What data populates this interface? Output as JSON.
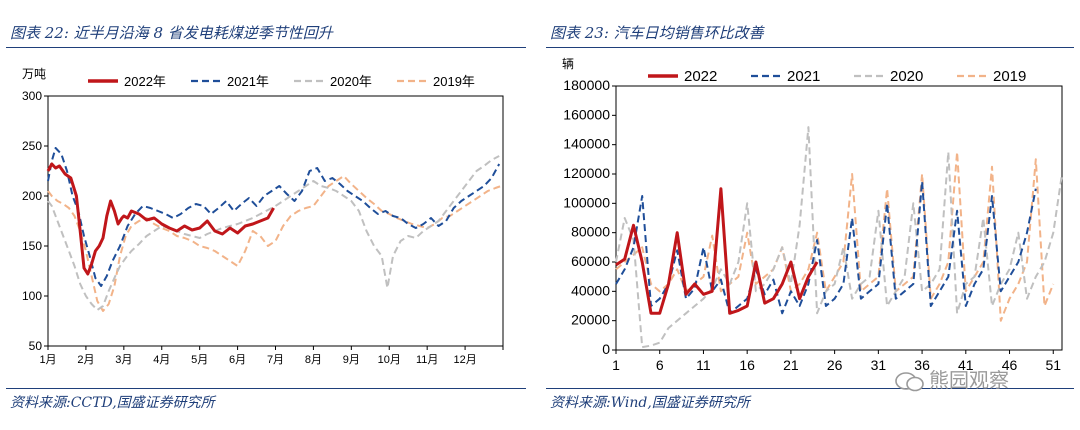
{
  "left": {
    "figure_title": "图表 22:  近半月沿海 8 省发电耗煤逆季节性回升",
    "source": "资料来源:CCTD,国盛证券研究所",
    "unit_label": "万吨"
  },
  "right": {
    "figure_title": "图表 23:  汽车日均销售环比改善",
    "source": "资料来源:Wind,国盛证券研究所",
    "unit_label": "辆"
  },
  "watermark": "熊园观察",
  "colors": {
    "y2022": "#c0161a",
    "y2021": "#1f4e99",
    "y2020": "#c0c0c0",
    "y2019": "#f2b389",
    "frame": "#1f3f7a"
  },
  "chart_data": [
    {
      "type": "line",
      "ylim": [
        50,
        300
      ],
      "yticks": [
        50,
        100,
        150,
        200,
        250,
        300
      ],
      "xlim": [
        1,
        13
      ],
      "xtick_labels": [
        "1月",
        "2月",
        "3月",
        "4月",
        "5月",
        "6月",
        "7月",
        "8月",
        "9月",
        "10月",
        "11月",
        "12月"
      ],
      "grid": false,
      "legend_position": "top",
      "series": [
        {
          "name": "2022年",
          "style": "solid",
          "x": [
            1,
            1.1,
            1.2,
            1.3,
            1.45,
            1.6,
            1.75,
            1.85,
            1.95,
            2.05,
            2.15,
            2.25,
            2.35,
            2.45,
            2.55,
            2.65,
            2.75,
            2.85,
            2.95,
            3.0,
            3.1,
            3.2,
            3.4,
            3.6,
            3.8,
            4.0,
            4.2,
            4.4,
            4.6,
            4.8,
            5.0,
            5.2,
            5.4,
            5.6,
            5.8,
            6.0,
            6.2,
            6.4,
            6.6,
            6.8,
            6.95
          ],
          "y": [
            225,
            232,
            228,
            230,
            222,
            218,
            200,
            165,
            128,
            122,
            132,
            145,
            150,
            158,
            180,
            195,
            185,
            172,
            178,
            180,
            178,
            185,
            182,
            176,
            178,
            172,
            168,
            165,
            170,
            166,
            168,
            175,
            165,
            162,
            168,
            163,
            170,
            172,
            175,
            178,
            188
          ]
        },
        {
          "name": "2021年",
          "style": "dashed",
          "x": [
            1,
            1.1,
            1.2,
            1.35,
            1.5,
            1.65,
            1.8,
            1.95,
            2.1,
            2.25,
            2.4,
            2.55,
            2.7,
            2.9,
            3.1,
            3.3,
            3.5,
            3.7,
            3.9,
            4.1,
            4.3,
            4.5,
            4.7,
            4.9,
            5.1,
            5.3,
            5.5,
            5.7,
            5.9,
            6.1,
            6.3,
            6.5,
            6.7,
            6.9,
            7.1,
            7.3,
            7.5,
            7.7,
            7.9,
            8.1,
            8.3,
            8.5,
            8.7,
            8.9,
            9.1,
            9.3,
            9.5,
            9.7,
            9.9,
            10.1,
            10.3,
            10.5,
            10.7,
            10.9,
            11.1,
            11.3,
            11.5,
            11.7,
            11.9,
            12.1,
            12.3,
            12.5,
            12.7,
            12.9
          ],
          "y": [
            215,
            235,
            248,
            242,
            225,
            200,
            185,
            160,
            140,
            118,
            110,
            120,
            135,
            150,
            170,
            182,
            190,
            188,
            185,
            182,
            178,
            182,
            188,
            192,
            190,
            182,
            188,
            195,
            185,
            192,
            198,
            190,
            200,
            205,
            210,
            202,
            195,
            205,
            225,
            228,
            215,
            218,
            212,
            205,
            200,
            195,
            188,
            182,
            185,
            180,
            178,
            172,
            168,
            172,
            178,
            170,
            175,
            188,
            195,
            200,
            205,
            210,
            218,
            232
          ]
        },
        {
          "name": "2020年",
          "style": "dashed",
          "x": [
            1,
            1.1,
            1.25,
            1.4,
            1.55,
            1.7,
            1.85,
            2.0,
            2.15,
            2.3,
            2.45,
            2.6,
            2.75,
            2.9,
            3.05,
            3.2,
            3.4,
            3.6,
            3.8,
            4.0,
            4.2,
            4.4,
            4.6,
            4.8,
            5.0,
            5.2,
            5.4,
            5.6,
            5.8,
            6.0,
            6.2,
            6.4,
            6.6,
            6.8,
            7.0,
            7.2,
            7.4,
            7.6,
            7.8,
            8.0,
            8.2,
            8.4,
            8.6,
            8.8,
            9.0,
            9.2,
            9.4,
            9.6,
            9.8,
            9.95,
            10.1,
            10.3,
            10.5,
            10.7,
            10.9,
            11.1,
            11.3,
            11.5,
            11.7,
            11.9,
            12.1,
            12.3,
            12.5,
            12.7,
            12.9
          ],
          "y": [
            195,
            190,
            175,
            160,
            145,
            130,
            112,
            100,
            92,
            86,
            90,
            105,
            118,
            130,
            138,
            145,
            152,
            160,
            165,
            170,
            168,
            165,
            162,
            160,
            158,
            162,
            165,
            168,
            170,
            172,
            175,
            178,
            182,
            186,
            190,
            195,
            200,
            205,
            210,
            215,
            210,
            208,
            205,
            200,
            195,
            185,
            165,
            150,
            140,
            108,
            140,
            155,
            160,
            158,
            165,
            170,
            175,
            185,
            195,
            205,
            215,
            225,
            230,
            236,
            240
          ]
        },
        {
          "name": "2019年",
          "style": "dashed",
          "x": [
            1,
            1.1,
            1.25,
            1.4,
            1.55,
            1.7,
            1.85,
            2.0,
            2.15,
            2.3,
            2.45,
            2.6,
            2.75,
            2.9,
            3.05,
            3.2,
            3.4,
            3.6,
            3.8,
            4.0,
            4.2,
            4.4,
            4.6,
            4.8,
            5.0,
            5.2,
            5.4,
            5.6,
            5.8,
            6.0,
            6.2,
            6.4,
            6.6,
            6.8,
            7.0,
            7.2,
            7.4,
            7.6,
            7.8,
            8.0,
            8.2,
            8.4,
            8.6,
            8.8,
            9.0,
            9.2,
            9.4,
            9.6,
            9.8,
            10.0,
            10.2,
            10.4,
            10.6,
            10.8,
            11.0,
            11.2,
            11.4,
            11.6,
            11.8,
            12.0,
            12.2,
            12.4,
            12.6,
            12.8,
            12.95
          ],
          "y": [
            205,
            200,
            195,
            192,
            188,
            180,
            165,
            145,
            120,
            95,
            85,
            92,
            110,
            140,
            160,
            170,
            175,
            178,
            172,
            168,
            165,
            160,
            158,
            155,
            150,
            148,
            145,
            140,
            135,
            130,
            145,
            165,
            160,
            150,
            155,
            170,
            180,
            185,
            188,
            190,
            200,
            210,
            215,
            220,
            212,
            205,
            198,
            192,
            185,
            182,
            178,
            175,
            172,
            170,
            168,
            172,
            178,
            180,
            185,
            190,
            195,
            200,
            205,
            208,
            210
          ]
        }
      ]
    },
    {
      "type": "line",
      "ylim": [
        0,
        180000
      ],
      "yticks": [
        0,
        20000,
        40000,
        60000,
        80000,
        100000,
        120000,
        140000,
        160000,
        180000
      ],
      "xlim": [
        1,
        52
      ],
      "xticks": [
        1,
        6,
        11,
        16,
        21,
        26,
        31,
        36,
        41,
        46,
        51
      ],
      "grid": false,
      "legend_position": "top",
      "series": [
        {
          "name": "2022",
          "style": "solid",
          "x": [
            1,
            2,
            3,
            4,
            5,
            6,
            7,
            8,
            9,
            10,
            11,
            12,
            13,
            14,
            15,
            16,
            17,
            18,
            19,
            20,
            21,
            22,
            23,
            24
          ],
          "y": [
            58000,
            62000,
            85000,
            60000,
            25000,
            25000,
            45000,
            80000,
            38000,
            45000,
            38000,
            40000,
            110000,
            25000,
            27000,
            30000,
            60000,
            32000,
            35000,
            45000,
            60000,
            35000,
            50000,
            60000
          ]
        },
        {
          "name": "2021",
          "style": "dashed",
          "x": [
            1,
            2,
            3,
            4,
            5,
            6,
            7,
            8,
            9,
            10,
            11,
            12,
            13,
            14,
            15,
            16,
            17,
            18,
            19,
            20,
            21,
            22,
            23,
            24,
            25,
            26,
            27,
            28,
            29,
            30,
            31,
            32,
            33,
            34,
            35,
            36,
            37,
            38,
            39,
            40,
            41,
            42,
            43,
            44,
            45,
            46,
            47,
            48,
            49
          ],
          "y": [
            45000,
            55000,
            70000,
            105000,
            30000,
            35000,
            45000,
            68000,
            35000,
            42000,
            70000,
            40000,
            48000,
            25000,
            30000,
            35000,
            55000,
            38000,
            48000,
            25000,
            40000,
            30000,
            45000,
            75000,
            30000,
            35000,
            45000,
            90000,
            35000,
            40000,
            45000,
            100000,
            35000,
            40000,
            45000,
            115000,
            30000,
            40000,
            50000,
            95000,
            30000,
            45000,
            55000,
            105000,
            40000,
            50000,
            60000,
            80000,
            110000
          ]
        },
        {
          "name": "2020",
          "style": "dashed",
          "x": [
            1,
            2,
            3,
            4,
            5,
            6,
            7,
            8,
            9,
            10,
            11,
            12,
            13,
            14,
            15,
            16,
            17,
            18,
            19,
            20,
            21,
            22,
            23,
            24,
            25,
            26,
            27,
            28,
            29,
            30,
            31,
            32,
            33,
            34,
            35,
            36,
            37,
            38,
            39,
            40,
            41,
            42,
            43,
            44,
            45,
            46,
            47,
            48,
            49,
            50,
            51,
            52
          ],
          "y": [
            60000,
            90000,
            75000,
            2000,
            3000,
            5000,
            15000,
            20000,
            25000,
            30000,
            35000,
            42000,
            55000,
            45000,
            60000,
            100000,
            40000,
            45000,
            55000,
            70000,
            45000,
            85000,
            152000,
            25000,
            40000,
            45000,
            70000,
            35000,
            45000,
            50000,
            95000,
            30000,
            40000,
            50000,
            100000,
            40000,
            45000,
            55000,
            135000,
            25000,
            45000,
            50000,
            90000,
            30000,
            45000,
            55000,
            80000,
            35000,
            50000,
            60000,
            80000,
            120000
          ]
        },
        {
          "name": "2019",
          "style": "dashed",
          "x": [
            1,
            2,
            3,
            4,
            5,
            6,
            7,
            8,
            9,
            10,
            11,
            12,
            13,
            14,
            15,
            16,
            17,
            18,
            19,
            20,
            21,
            22,
            23,
            24,
            25,
            26,
            27,
            28,
            29,
            30,
            31,
            32,
            33,
            34,
            35,
            36,
            37,
            38,
            39,
            40,
            41,
            42,
            43,
            44,
            45,
            46,
            47,
            48,
            49,
            50,
            51
          ],
          "y": [
            55000,
            60000,
            65000,
            70000,
            45000,
            40000,
            45000,
            55000,
            40000,
            45000,
            50000,
            78000,
            40000,
            45000,
            50000,
            80000,
            45000,
            50000,
            55000,
            70000,
            40000,
            45000,
            55000,
            80000,
            40000,
            50000,
            60000,
            120000,
            40000,
            45000,
            50000,
            110000,
            40000,
            45000,
            50000,
            120000,
            35000,
            45000,
            60000,
            135000,
            40000,
            50000,
            60000,
            125000,
            20000,
            35000,
            45000,
            60000,
            130000,
            30000,
            45000
          ]
        }
      ]
    }
  ]
}
